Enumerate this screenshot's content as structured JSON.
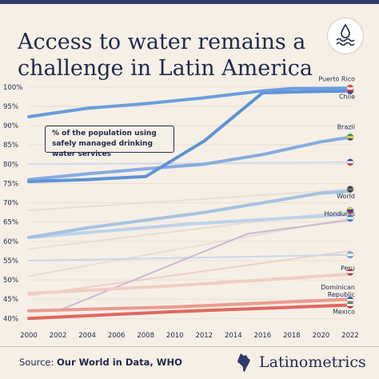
{
  "title_lines": [
    "Access to water remains a",
    "challenge in Latin America"
  ],
  "callout": "% of the population using safely managed drinking water services",
  "source_prefix": "Source: ",
  "source_name": "Our World in Data, WHO",
  "brand": "Latinometrics",
  "icon": "water-waves-icon",
  "chart_data": {
    "type": "line",
    "x_ticks": [
      2000,
      2002,
      2004,
      2006,
      2008,
      2010,
      2012,
      2014,
      2016,
      2018,
      2020,
      2022
    ],
    "y_ticks": [
      40,
      45,
      50,
      55,
      60,
      65,
      70,
      75,
      80,
      85,
      90,
      95,
      100
    ],
    "y_tick_labels": [
      "40%",
      "45%",
      "50%",
      "55%",
      "60%",
      "65%",
      "70%",
      "75%",
      "80%",
      "85%",
      "90%",
      "95%",
      "100%"
    ],
    "xlim": [
      2000,
      2022
    ],
    "ylim": [
      38,
      101
    ],
    "grid": true,
    "series": [
      {
        "name": "",
        "color": "#efcfc6",
        "width": 2,
        "x": [
          2000,
          2022
        ],
        "y": [
          46,
          57.5
        ]
      },
      {
        "name": "",
        "color": "#e9ded5",
        "width": 2,
        "x": [
          2000,
          2022
        ],
        "y": [
          68,
          73.5
        ]
      },
      {
        "name": "",
        "color": "#e9ded5",
        "width": 2,
        "x": [
          2000,
          2022
        ],
        "y": [
          51,
          66
        ]
      },
      {
        "name": "",
        "color": "#e9ded5",
        "width": 2,
        "x": [
          2000,
          2022
        ],
        "y": [
          58,
          68
        ]
      },
      {
        "name": "",
        "color": "#cfdbe9",
        "width": 2,
        "x": [
          2000,
          2022
        ],
        "y": [
          80,
          80.5
        ]
      },
      {
        "name": "",
        "color": "#c9d7e8",
        "width": 2,
        "x": [
          2000,
          2022
        ],
        "y": [
          55,
          56.5
        ]
      },
      {
        "name": "",
        "color": "#cdb8cf",
        "width": 2,
        "x": [
          2002,
          2015,
          2022
        ],
        "y": [
          42,
          62,
          65.5
        ]
      },
      {
        "name": "Peru",
        "color": "#f0cdc3",
        "width": 4,
        "x": [
          2000,
          2010,
          2022
        ],
        "y": [
          46.5,
          48.5,
          51.5
        ]
      },
      {
        "name": "Dominican Republic",
        "color": "#ea9b8f",
        "width": 4,
        "x": [
          2000,
          2010,
          2022
        ],
        "y": [
          42,
          43,
          45
        ]
      },
      {
        "name": "Mexico",
        "color": "#e0685e",
        "width": 4,
        "x": [
          2000,
          2010,
          2022
        ],
        "y": [
          40,
          41.8,
          43.5
        ]
      },
      {
        "name": "Honduras",
        "color": "#bcd3ea",
        "width": 4,
        "x": [
          2000,
          2011,
          2022
        ],
        "y": [
          61,
          64.5,
          67
        ]
      },
      {
        "name": "World",
        "color": "#a5c2e2",
        "width": 4,
        "x": [
          2000,
          2004,
          2008,
          2012,
          2016,
          2020,
          2022
        ],
        "y": [
          61,
          63.5,
          65.5,
          67.5,
          70,
          72.5,
          73
        ]
      },
      {
        "name": "Brazil",
        "color": "#85ade0",
        "width": 4,
        "x": [
          2000,
          2004,
          2008,
          2012,
          2016,
          2020,
          2022
        ],
        "y": [
          76,
          77.5,
          78.8,
          80,
          82.5,
          85.8,
          87
        ]
      },
      {
        "name": "Chile",
        "color": "#5d93d6",
        "width": 4,
        "x": [
          2000,
          2004,
          2008,
          2012,
          2016,
          2019,
          2022
        ],
        "y": [
          75.5,
          76,
          76.8,
          86,
          98.5,
          98.8,
          99
        ]
      },
      {
        "name": "Puerto Rico",
        "color": "#6a9ddc",
        "width": 4,
        "x": [
          2000,
          2004,
          2008,
          2012,
          2016,
          2018,
          2022
        ],
        "y": [
          92.3,
          94.5,
          95.7,
          97.2,
          99,
          99.6,
          99.7
        ]
      }
    ],
    "labels": [
      {
        "text": "Puerto Rico",
        "series": "Puerto Rico",
        "offset": -9
      },
      {
        "text": "Chile",
        "series": "Chile",
        "offset": 10
      },
      {
        "text": "Brazil",
        "series": "Brazil",
        "offset": -10
      },
      {
        "text": "World",
        "series": "World",
        "offset": 9
      },
      {
        "text": "Honduras",
        "series": "Honduras",
        "offset": 2
      },
      {
        "text": "Peru",
        "series": "Peru",
        "offset": -5
      },
      {
        "text": "Dominican",
        "series": "Dominican Republic",
        "offset": -12
      },
      {
        "text": "Republic",
        "series": "Dominican Republic",
        "offset": -3
      },
      {
        "text": "Mexico",
        "series": "Mexico",
        "offset": 11
      }
    ],
    "flags": [
      {
        "name": "puerto-rico-flag",
        "y": 99.7,
        "colors": [
          "#e2362f",
          "#ffffff",
          "#2750a0"
        ]
      },
      {
        "name": "chile-flag",
        "y": 99,
        "colors": [
          "#ffffff",
          "#d5232b",
          "#1f4ba0"
        ]
      },
      {
        "name": "brazil-flag",
        "y": 87,
        "colors": [
          "#2c9a45",
          "#f4d11f",
          "#2b4fa0"
        ]
      },
      {
        "name": "costa-rica-flag",
        "y": 80.5,
        "colors": [
          "#1f4ba0",
          "#ffffff",
          "#d5232b"
        ]
      },
      {
        "name": "world-flag",
        "y": 73.5,
        "colors": [
          "#2f3b6b",
          "#8b6a3a",
          "#2f3b6b"
        ]
      },
      {
        "name": "colombia-flag",
        "y": 68,
        "colors": [
          "#f4d11f",
          "#1f4ba0",
          "#d5232b"
        ]
      },
      {
        "name": "honduras-flag",
        "y": 66,
        "colors": [
          "#2f6fc0",
          "#ffffff",
          "#2f6fc0"
        ]
      },
      {
        "name": "guatemala-flag",
        "y": 56.5,
        "colors": [
          "#6aa3da",
          "#ffffff",
          "#6aa3da"
        ]
      },
      {
        "name": "peru-flag",
        "y": 52,
        "colors": [
          "#d5232b",
          "#ffffff",
          "#d5232b"
        ]
      },
      {
        "name": "dominican-republic-flag",
        "y": 44.8,
        "colors": [
          "#1f4ba0",
          "#ffffff",
          "#d5232b"
        ]
      },
      {
        "name": "mexico-flag",
        "y": 43.5,
        "colors": [
          "#2c9a45",
          "#ffffff",
          "#d5232b"
        ]
      }
    ]
  }
}
